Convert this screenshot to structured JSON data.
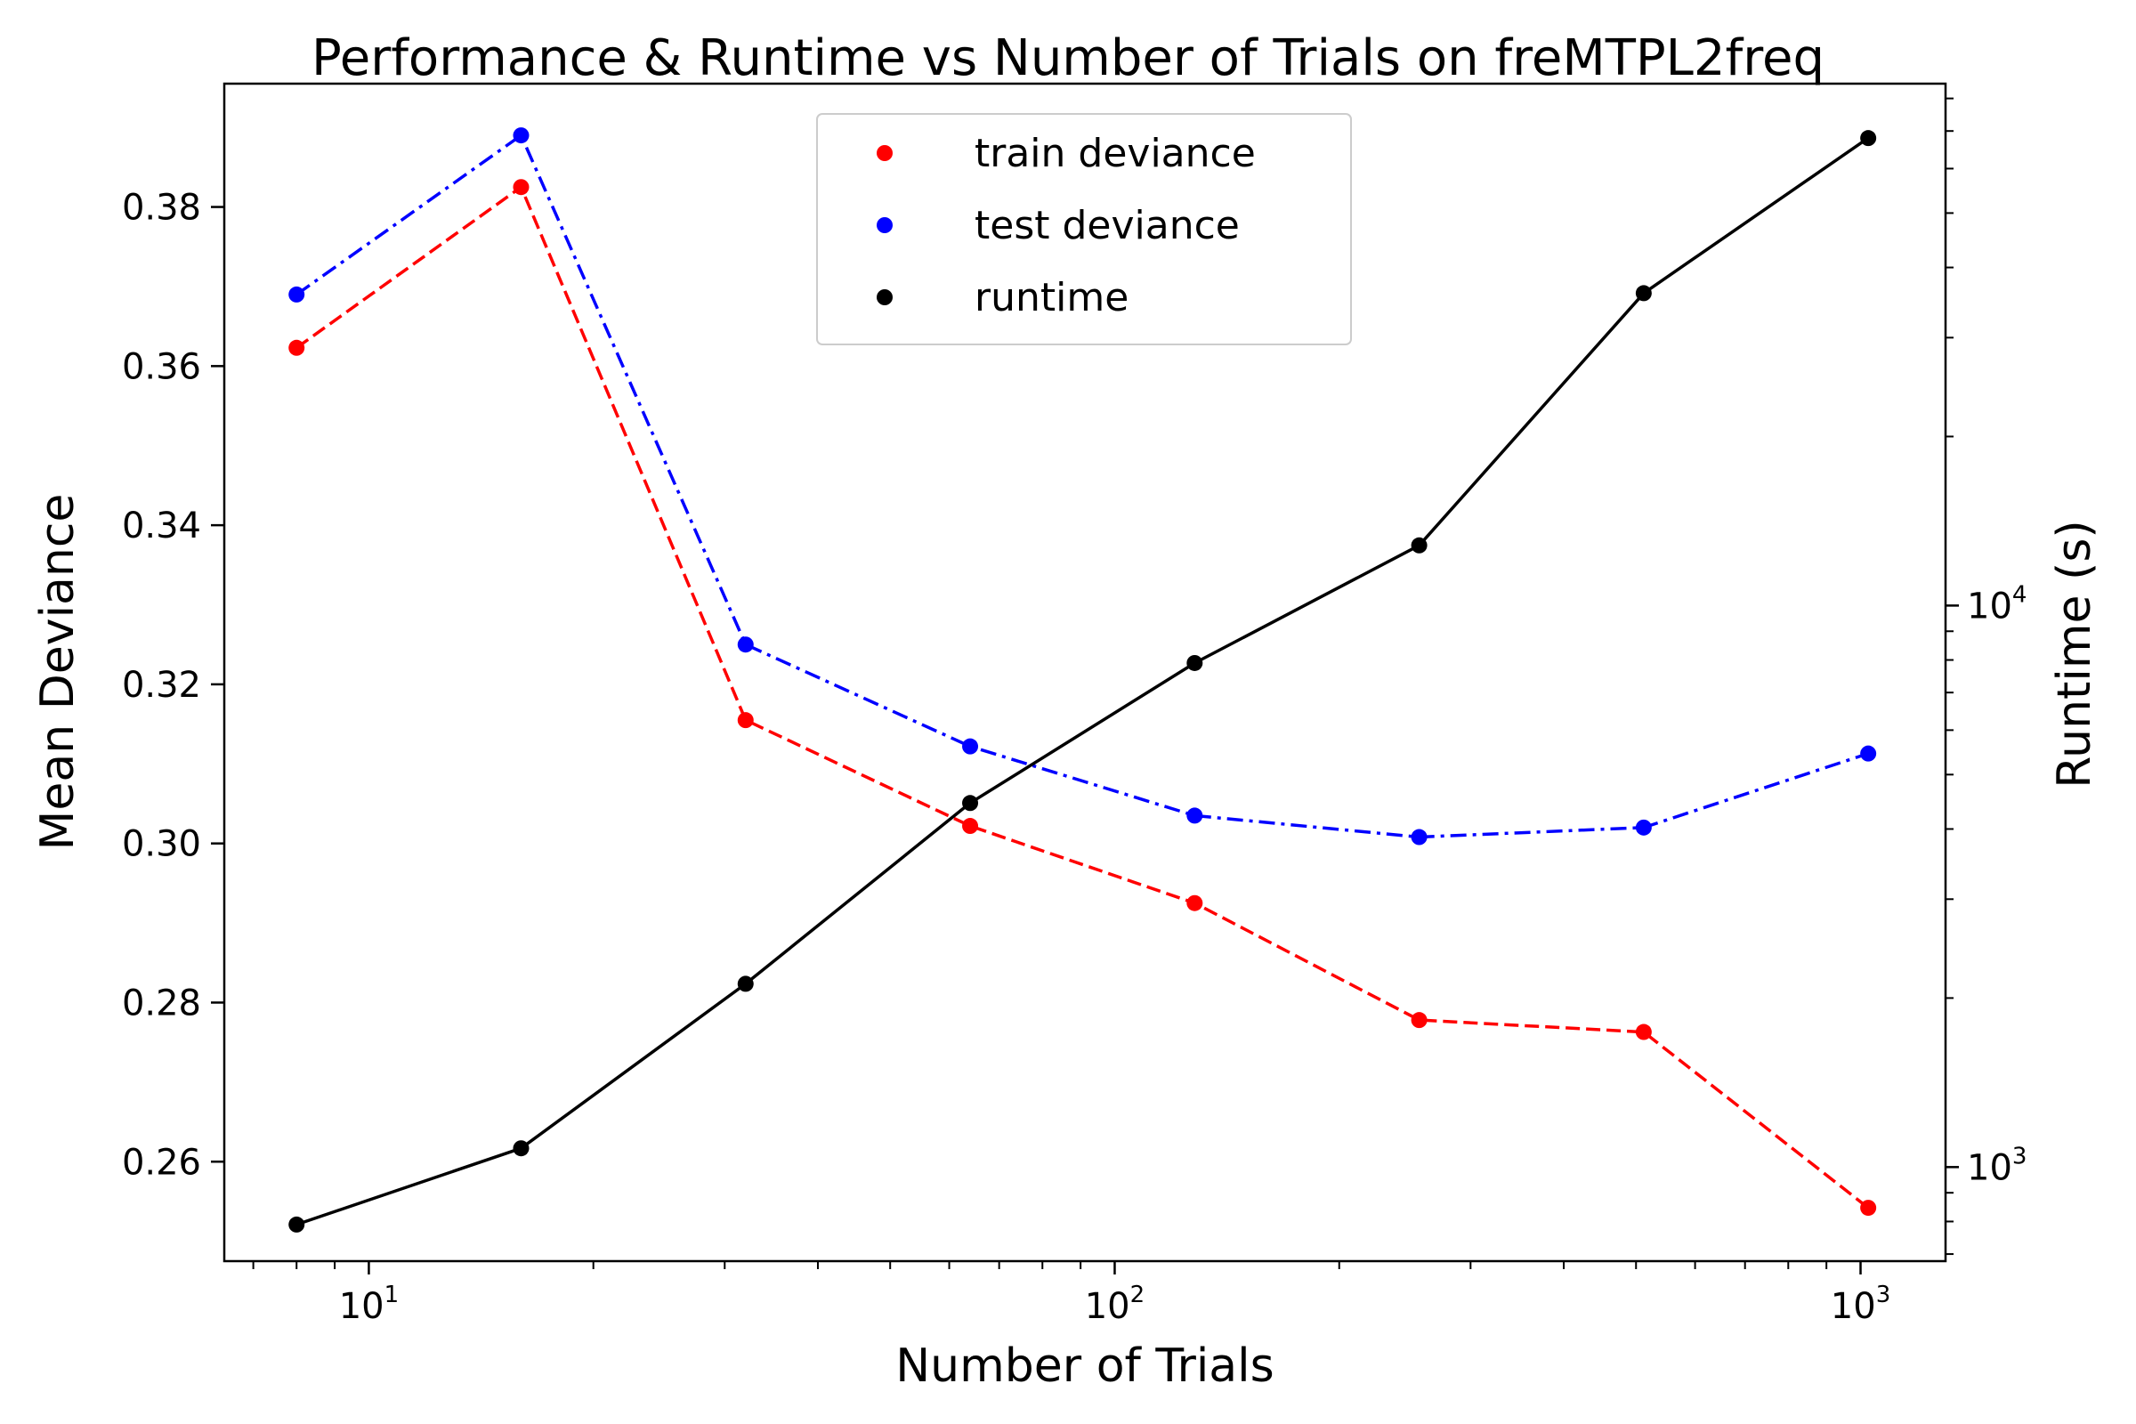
{
  "chart_data": {
    "type": "line",
    "title": "Performance & Runtime vs Number of Trials on freMTPL2freq",
    "xlabel": "Number of Trials",
    "ylabel": "Mean Deviance",
    "y2label": "Runtime (s)",
    "x_scale": "log",
    "y2_scale": "log",
    "xlim": [
      6.4,
      1300
    ],
    "ylim": [
      0.2475,
      0.3955
    ],
    "y2lim": [
      680,
      85000
    ],
    "x": [
      8,
      16,
      32,
      64,
      128,
      256,
      512,
      1024
    ],
    "x_ticks": [
      {
        "value": 10,
        "base": "10",
        "exp": "1"
      },
      {
        "value": 100,
        "base": "10",
        "exp": "2"
      },
      {
        "value": 1000,
        "base": "10",
        "exp": "3"
      }
    ],
    "y_ticks": [
      {
        "value": 0.26,
        "label": "0.26"
      },
      {
        "value": 0.28,
        "label": "0.28"
      },
      {
        "value": 0.3,
        "label": "0.30"
      },
      {
        "value": 0.32,
        "label": "0.32"
      },
      {
        "value": 0.34,
        "label": "0.34"
      },
      {
        "value": 0.36,
        "label": "0.36"
      },
      {
        "value": 0.38,
        "label": "0.38"
      }
    ],
    "y2_ticks": [
      {
        "value": 1000,
        "base": "10",
        "exp": "3"
      },
      {
        "value": 10000,
        "base": "10",
        "exp": "4"
      }
    ],
    "series": [
      {
        "name": "train deviance",
        "axis": "left",
        "color": "#ff0000",
        "dash": "dashed",
        "values": [
          0.3623,
          0.3825,
          0.3155,
          0.3022,
          0.2925,
          0.2778,
          0.2763,
          0.2542
        ]
      },
      {
        "name": "test deviance",
        "axis": "left",
        "color": "#0000ff",
        "dash": "dashdot",
        "values": [
          0.369,
          0.389,
          0.325,
          0.3122,
          0.3035,
          0.3008,
          0.302,
          0.3113
        ]
      },
      {
        "name": "runtime",
        "axis": "right",
        "color": "#000000",
        "dash": "solid",
        "values": [
          790,
          1080,
          2120,
          4450,
          7900,
          12800,
          36000,
          68000
        ]
      }
    ],
    "legend_position": "top-center",
    "grid": false
  }
}
